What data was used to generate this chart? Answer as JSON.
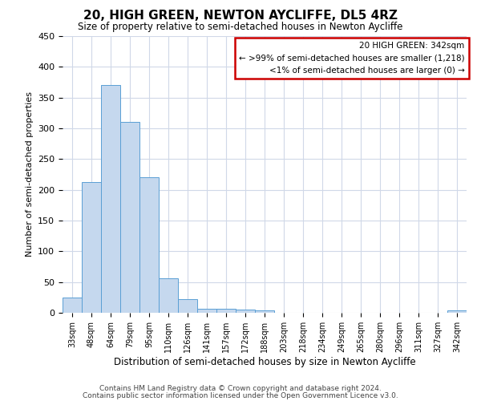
{
  "title": "20, HIGH GREEN, NEWTON AYCLIFFE, DL5 4RZ",
  "subtitle": "Size of property relative to semi-detached houses in Newton Aycliffe",
  "xlabel": "Distribution of semi-detached houses by size in Newton Aycliffe",
  "ylabel": "Number of semi-detached properties",
  "bar_color": "#c5d8ee",
  "bar_edge_color": "#5a9fd4",
  "bin_labels": [
    "33sqm",
    "48sqm",
    "64sqm",
    "79sqm",
    "95sqm",
    "110sqm",
    "126sqm",
    "141sqm",
    "157sqm",
    "172sqm",
    "188sqm",
    "203sqm",
    "218sqm",
    "234sqm",
    "249sqm",
    "265sqm",
    "280sqm",
    "296sqm",
    "311sqm",
    "327sqm",
    "342sqm"
  ],
  "values": [
    25,
    212,
    370,
    310,
    220,
    56,
    22,
    7,
    6,
    5,
    4,
    0,
    0,
    0,
    0,
    0,
    0,
    0,
    0,
    0,
    4
  ],
  "ylim": [
    0,
    450
  ],
  "yticks": [
    0,
    50,
    100,
    150,
    200,
    250,
    300,
    350,
    400,
    450
  ],
  "annotation_title": "20 HIGH GREEN: 342sqm",
  "annotation_line1": "← >99% of semi-detached houses are smaller (1,218)",
  "annotation_line2": "<1% of semi-detached houses are larger (0) →",
  "red_box_color": "#cc0000",
  "footer_line1": "Contains HM Land Registry data © Crown copyright and database right 2024.",
  "footer_line2": "Contains public sector information licensed under the Open Government Licence v3.0.",
  "bg_color": "#ffffff",
  "grid_color": "#d0d8e8"
}
